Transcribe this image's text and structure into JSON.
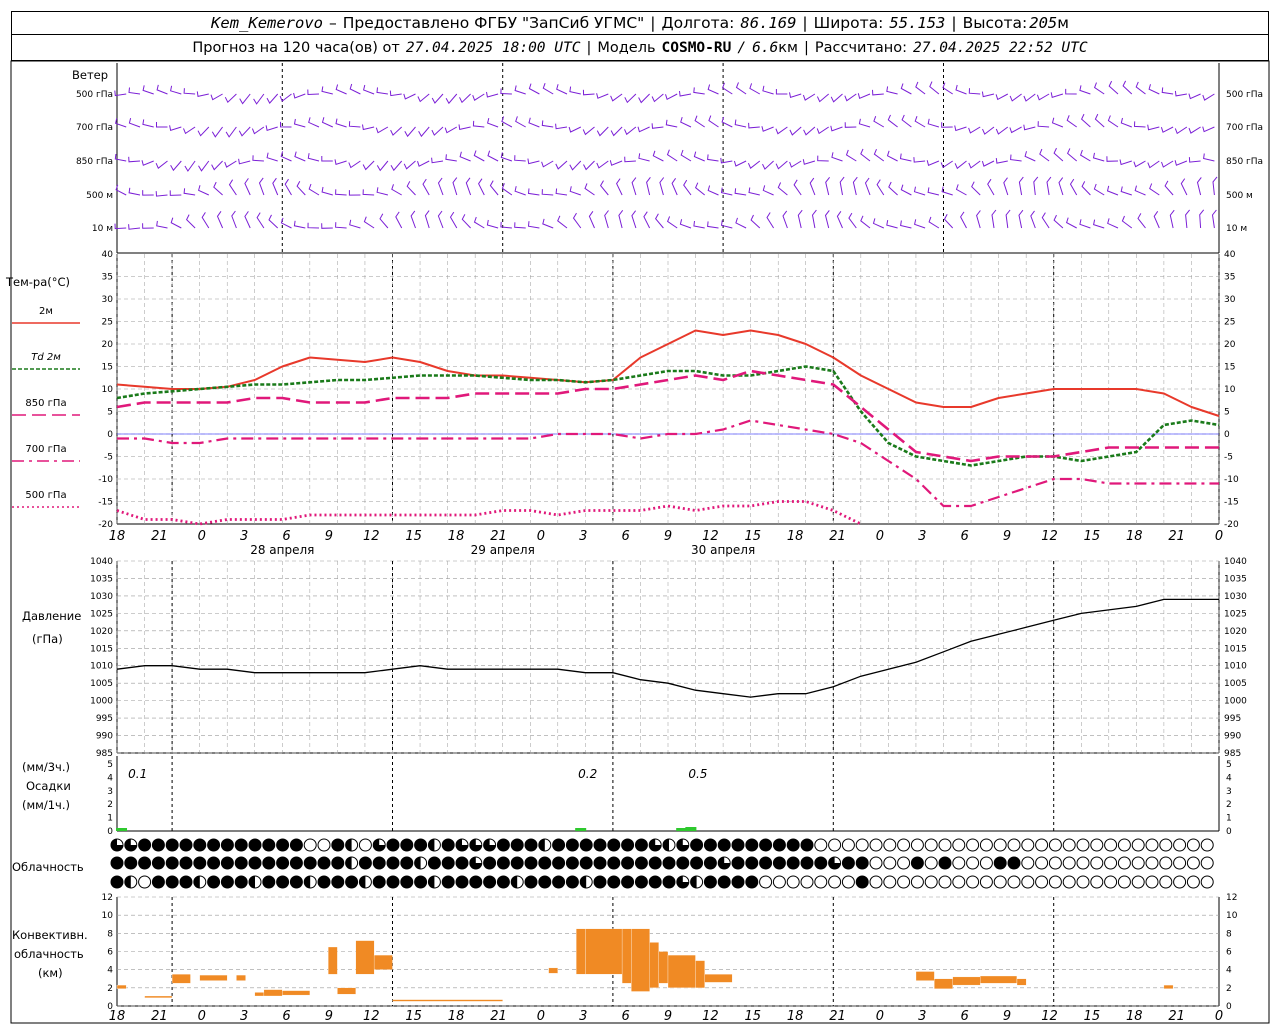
{
  "header": {
    "station": "Kem_Kemerovo",
    "dash": "–",
    "provider": "Предоставлено ФГБУ \"ЗапСиб УГМС\"",
    "sep": "|",
    "lon_label": "Долгота:",
    "lon_value": "86.169",
    "lat_label": "Широта:",
    "lat_value": "55.153",
    "alt_label": "Высота:",
    "alt_value": "205",
    "alt_unit": "м",
    "forecast_prefix": "Прогноз на 120 часа(ов) от",
    "forecast_start": "27.04.2025 18:00 UTC",
    "model_label": "Модель",
    "model_name": "COSMO-RU",
    "model_slash": "/",
    "model_res": "6.6",
    "model_res_unit": "км",
    "calc_label": "Рассчитано:",
    "calc_time": "27.04.2025 22:52 UTC"
  },
  "colors": {
    "wind": "#7b1fd6",
    "t2m": "#e8392b",
    "td2m": "#1a7a1a",
    "t850": "#e0187a",
    "t700": "#e0187a",
    "t500": "#e0187a",
    "pressure": "#000000",
    "precip": "#2ec92e",
    "convective": "#f08a24",
    "grid": "#9a9a9a",
    "zero_line": "#5a5aff"
  },
  "time_axis": {
    "hour_ticks": [
      "18",
      "21",
      "0",
      "3",
      "6",
      "9",
      "12",
      "15",
      "18",
      "21",
      "0",
      "3",
      "6",
      "9",
      "12",
      "15",
      "18",
      "21",
      "0",
      "3",
      "6",
      "9",
      "12",
      "15",
      "18",
      "21",
      "0"
    ],
    "day_labels": [
      "28 апреля",
      "29 апреля",
      "30 апреля"
    ]
  },
  "wind_panel": {
    "title": "Ветер",
    "levels": [
      "500 гПа",
      "700 гПа",
      "850 гПа",
      "500 м",
      "10 м"
    ]
  },
  "temp_panel": {
    "title": "Тем-ра(°С)",
    "legend": [
      "2м",
      "Td 2м",
      "850 гПа",
      "700 гПа",
      "500 гПа"
    ],
    "ticks": [
      "40",
      "35",
      "30",
      "25",
      "20",
      "15",
      "10",
      "5",
      "0",
      "-5",
      "-10",
      "-15",
      "-20"
    ]
  },
  "pressure_panel": {
    "title": "Давление",
    "unit": "(гПа)",
    "ticks": [
      "1040",
      "1035",
      "1030",
      "1025",
      "1020",
      "1015",
      "1010",
      "1005",
      "1000",
      "995",
      "990",
      "985"
    ]
  },
  "precip_panel": {
    "label1": "(мм/3ч.)",
    "label2": "Осадки",
    "label3": "(мм/1ч.)",
    "ticks": [
      "5",
      "4",
      "3",
      "2",
      "1",
      "0"
    ],
    "annotations": [
      {
        "hour": 1,
        "text": "0.1"
      },
      {
        "hour": 50,
        "text": "0.2"
      },
      {
        "hour": 62,
        "text": "0.5"
      }
    ]
  },
  "cloud_panel": {
    "title": "Облачность"
  },
  "conv_panel": {
    "title1": "Конвективн.",
    "title2": "облачность",
    "title3": "(км)",
    "ticks": [
      "12",
      "10",
      "8",
      "6",
      "4",
      "2",
      "0"
    ]
  },
  "chart_data": [
    {
      "type": "line",
      "title": "Тем-ра(°С)",
      "x_unit": "hours from 27.04.2025 18:00 UTC",
      "ylim": [
        -20,
        40
      ],
      "series": [
        {
          "name": "2м",
          "x": [
            0,
            3,
            6,
            9,
            12,
            15,
            18,
            21,
            24,
            27,
            30,
            33,
            36,
            39,
            42,
            45,
            48,
            51,
            54,
            57,
            60,
            63,
            66,
            69,
            72,
            75,
            78,
            81,
            84,
            87,
            90,
            93,
            96,
            99,
            102,
            105,
            108,
            111,
            114,
            117,
            120
          ],
          "values": [
            11,
            10.5,
            10,
            10,
            10.5,
            12,
            15,
            17,
            16.5,
            16,
            17,
            16,
            14,
            13,
            13,
            12.5,
            12,
            11.5,
            12,
            17,
            20,
            23,
            22,
            23,
            22,
            20,
            17,
            13,
            10,
            7,
            6,
            6,
            8,
            9,
            10,
            10,
            10,
            10,
            9,
            6,
            4
          ]
        },
        {
          "name": "Td 2м",
          "x": [
            0,
            3,
            6,
            9,
            12,
            15,
            18,
            21,
            24,
            27,
            30,
            33,
            36,
            39,
            42,
            45,
            48,
            51,
            54,
            57,
            60,
            63,
            66,
            69,
            72,
            75,
            78,
            81,
            84,
            87,
            90,
            93,
            96,
            99,
            102,
            105,
            108,
            111,
            114,
            117,
            120
          ],
          "values": [
            8,
            9,
            9.5,
            10,
            10.5,
            11,
            11,
            11.5,
            12,
            12,
            12.5,
            13,
            13,
            13,
            12.5,
            12,
            12,
            11.5,
            12,
            13,
            14,
            14,
            13,
            13,
            14,
            15,
            14,
            5,
            -2,
            -5,
            -6,
            -7,
            -6,
            -5,
            -5,
            -6,
            -5,
            -4,
            2,
            3,
            2
          ]
        },
        {
          "name": "850 гПа",
          "x": [
            0,
            3,
            6,
            9,
            12,
            15,
            18,
            21,
            24,
            27,
            30,
            33,
            36,
            39,
            42,
            45,
            48,
            51,
            54,
            57,
            60,
            63,
            66,
            69,
            72,
            75,
            78,
            81,
            84,
            87,
            90,
            93,
            96,
            99,
            102,
            105,
            108,
            111,
            114,
            117,
            120
          ],
          "values": [
            6,
            7,
            7,
            7,
            7,
            8,
            8,
            7,
            7,
            7,
            8,
            8,
            8,
            9,
            9,
            9,
            9,
            10,
            10,
            11,
            12,
            13,
            12,
            14,
            13,
            12,
            11,
            6,
            1,
            -4,
            -5,
            -6,
            -5,
            -5,
            -5,
            -4,
            -3,
            -3,
            -3,
            -3,
            -3
          ]
        },
        {
          "name": "700 гПа",
          "x": [
            0,
            3,
            6,
            9,
            12,
            15,
            18,
            21,
            24,
            27,
            30,
            33,
            36,
            39,
            42,
            45,
            48,
            51,
            54,
            57,
            60,
            63,
            66,
            69,
            72,
            75,
            78,
            81,
            84,
            87,
            90,
            93,
            96,
            99,
            102,
            105,
            108,
            111,
            114,
            117,
            120
          ],
          "values": [
            -1,
            -1,
            -2,
            -2,
            -1,
            -1,
            -1,
            -1,
            -1,
            -1,
            -1,
            -1,
            -1,
            -1,
            -1,
            -1,
            0,
            0,
            0,
            -1,
            0,
            0,
            1,
            3,
            2,
            1,
            0,
            -2,
            -6,
            -10,
            -16,
            -16,
            -14,
            -12,
            -10,
            -10,
            -11,
            -11,
            -11,
            -11,
            -11
          ]
        },
        {
          "name": "500 гПа",
          "x": [
            0,
            3,
            6,
            9,
            12,
            15,
            18,
            21,
            24,
            27,
            30,
            33,
            36,
            39,
            42,
            45,
            48,
            51,
            54,
            57,
            60,
            63,
            66,
            69,
            72,
            75,
            78,
            81
          ],
          "values": [
            -17,
            -19,
            -19,
            -20,
            -19,
            -19,
            -19,
            -18,
            -18,
            -18,
            -18,
            -18,
            -18,
            -18,
            -17,
            -17,
            -18,
            -17,
            -17,
            -17,
            -16,
            -17,
            -16,
            -16,
            -15,
            -15,
            -17,
            -20
          ]
        }
      ]
    },
    {
      "type": "line",
      "title": "Давление",
      "x_unit": "hours from 27.04.2025 18:00 UTC",
      "ylim": [
        985,
        1040
      ],
      "series": [
        {
          "name": "",
          "x": [
            0,
            3,
            6,
            9,
            12,
            15,
            18,
            21,
            24,
            27,
            30,
            33,
            36,
            39,
            42,
            45,
            48,
            51,
            54,
            57,
            60,
            63,
            66,
            69,
            72,
            75,
            78,
            81,
            84,
            87,
            90,
            93,
            96,
            99,
            102,
            105,
            108,
            111,
            114,
            117,
            120
          ],
          "values": [
            1009,
            1010,
            1010,
            1009,
            1009,
            1008,
            1008,
            1008,
            1008,
            1008,
            1009,
            1010,
            1009,
            1009,
            1009,
            1009,
            1009,
            1008,
            1008,
            1006,
            1005,
            1003,
            1002,
            1001,
            1002,
            1002,
            1004,
            1007,
            1009,
            1011,
            1014,
            1017,
            1019,
            1021,
            1023,
            1025,
            1026,
            1027,
            1029,
            1029,
            1029
          ]
        }
      ]
    },
    {
      "type": "bar",
      "title": "Осадки",
      "x_unit": "hours from 27.04.2025 18:00 UTC",
      "ylim": [
        0,
        5
      ],
      "x": [
        0,
        50,
        61,
        62
      ],
      "values": [
        0.1,
        0.2,
        0.2,
        0.5
      ]
    },
    {
      "type": "bar",
      "title": "Конвективн. облачность",
      "x_unit": "hours from 27.04.2025 18:00 UTC",
      "ylim": [
        0,
        12
      ],
      "segments": [
        {
          "x0": 0,
          "x1": 1,
          "bottom": 1.9,
          "top": 2.3
        },
        {
          "x0": 3,
          "x1": 6,
          "bottom": 0.9,
          "top": 1.1
        },
        {
          "x0": 6,
          "x1": 8,
          "bottom": 2.5,
          "top": 3.5
        },
        {
          "x0": 9,
          "x1": 12,
          "bottom": 2.8,
          "top": 3.4
        },
        {
          "x0": 13,
          "x1": 14,
          "bottom": 2.8,
          "top": 3.4
        },
        {
          "x0": 15,
          "x1": 16,
          "bottom": 1.1,
          "top": 1.5
        },
        {
          "x0": 16,
          "x1": 18,
          "bottom": 1.1,
          "top": 1.8
        },
        {
          "x0": 18,
          "x1": 21,
          "bottom": 1.2,
          "top": 1.7
        },
        {
          "x0": 23,
          "x1": 24,
          "bottom": 3.5,
          "top": 6.5
        },
        {
          "x0": 24,
          "x1": 26,
          "bottom": 1.3,
          "top": 2
        },
        {
          "x0": 26,
          "x1": 28,
          "bottom": 3.5,
          "top": 7.2
        },
        {
          "x0": 28,
          "x1": 30,
          "bottom": 4,
          "top": 5.6
        },
        {
          "x0": 30,
          "x1": 42,
          "bottom": 0.5,
          "top": 0.7
        },
        {
          "x0": 47,
          "x1": 48,
          "bottom": 3.6,
          "top": 4.2
        },
        {
          "x0": 50,
          "x1": 51,
          "bottom": 3.5,
          "top": 8.5
        },
        {
          "x0": 51,
          "x1": 55,
          "bottom": 3.5,
          "top": 8.5
        },
        {
          "x0": 55,
          "x1": 56,
          "bottom": 2.5,
          "top": 8.5
        },
        {
          "x0": 56,
          "x1": 58,
          "bottom": 1.6,
          "top": 8.5
        },
        {
          "x0": 58,
          "x1": 59,
          "bottom": 2,
          "top": 7
        },
        {
          "x0": 59,
          "x1": 60,
          "bottom": 2.5,
          "top": 6
        },
        {
          "x0": 60,
          "x1": 63,
          "bottom": 2,
          "top": 5.6
        },
        {
          "x0": 63,
          "x1": 64,
          "bottom": 2,
          "top": 5
        },
        {
          "x0": 64,
          "x1": 67,
          "bottom": 2.6,
          "top": 3.5
        },
        {
          "x0": 87,
          "x1": 89,
          "bottom": 2.8,
          "top": 3.8
        },
        {
          "x0": 89,
          "x1": 91,
          "bottom": 1.9,
          "top": 3.0
        },
        {
          "x0": 91,
          "x1": 94,
          "bottom": 2.3,
          "top": 3.2
        },
        {
          "x0": 94,
          "x1": 98,
          "bottom": 2.5,
          "top": 3.3
        },
        {
          "x0": 98,
          "x1": 99,
          "bottom": 2.3,
          "top": 3.0
        },
        {
          "x0": 114,
          "x1": 115,
          "bottom": 1.9,
          "top": 2.3
        }
      ]
    }
  ]
}
